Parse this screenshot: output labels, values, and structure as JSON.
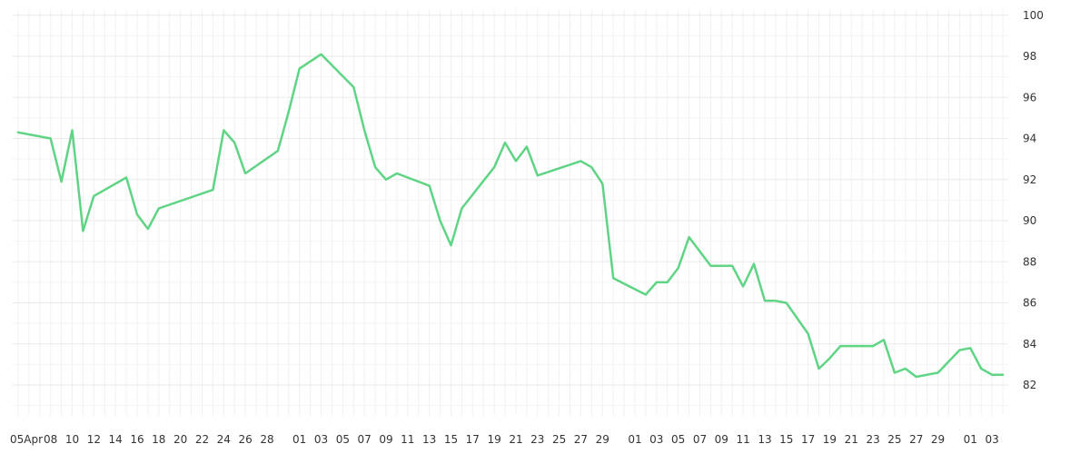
{
  "chart_data": {
    "type": "line",
    "title": "",
    "xlabel": "",
    "ylabel": "",
    "grid": true,
    "legend": "none",
    "y_axis_side": "right",
    "ylim": [
      80.5,
      100.3
    ],
    "y_ticks": [
      82,
      84,
      86,
      88,
      90,
      92,
      94,
      96,
      98,
      100
    ],
    "x_tick_labels": [
      "05Apr",
      "08",
      "10",
      "12",
      "14",
      "16",
      "18",
      "20",
      "22",
      "24",
      "26",
      "28",
      "01",
      "03",
      "05",
      "07",
      "09",
      "11",
      "13",
      "15",
      "17",
      "19",
      "21",
      "23",
      "25",
      "27",
      "29",
      "01",
      "03",
      "05",
      "07",
      "09",
      "11",
      "13",
      "15",
      "17",
      "19",
      "21",
      "23",
      "25",
      "27",
      "29",
      "01",
      "03"
    ],
    "x_tick_positions": [
      0,
      3,
      5,
      7,
      9,
      11,
      13,
      15,
      17,
      19,
      21,
      23,
      26,
      28,
      30,
      32,
      34,
      36,
      38,
      40,
      42,
      44,
      46,
      48,
      50,
      52,
      54,
      57,
      59,
      61,
      63,
      65,
      67,
      69,
      71,
      73,
      75,
      77,
      79,
      81,
      83,
      85,
      88,
      90
    ],
    "x_range": [
      -0.5,
      91.5
    ],
    "series": [
      {
        "color": "#5fd484",
        "x": [
          0,
          3,
          4,
          5,
          6,
          7,
          10,
          11,
          12,
          13,
          18,
          19,
          20,
          21,
          24,
          25,
          26,
          28,
          31,
          32,
          33,
          34,
          35,
          38,
          39,
          40,
          41,
          44,
          45,
          46,
          47,
          48,
          52,
          53,
          54,
          55,
          58,
          59,
          60,
          61,
          62,
          64,
          66,
          67,
          68,
          69,
          70,
          71,
          73,
          74,
          75,
          76,
          77,
          79,
          80,
          81,
          82,
          83,
          84,
          85,
          87,
          88,
          89,
          90,
          91
        ],
        "values": [
          94.3,
          94.0,
          91.9,
          94.4,
          89.5,
          91.2,
          92.1,
          90.3,
          89.6,
          90.6,
          91.5,
          94.4,
          93.8,
          92.3,
          93.4,
          95.3,
          97.4,
          98.1,
          96.5,
          94.4,
          92.6,
          92.0,
          92.3,
          91.7,
          90.0,
          88.8,
          90.6,
          92.6,
          93.8,
          92.9,
          93.6,
          92.2,
          92.9,
          92.6,
          91.8,
          87.2,
          86.4,
          87.0,
          87.0,
          87.7,
          89.2,
          87.8,
          87.8,
          86.8,
          87.9,
          86.1,
          86.1,
          86.0,
          84.5,
          82.8,
          83.3,
          83.9,
          83.9,
          83.9,
          84.2,
          82.6,
          82.8,
          82.4,
          82.5,
          82.6,
          83.7,
          83.8,
          82.8,
          82.5,
          82.5
        ]
      }
    ]
  }
}
